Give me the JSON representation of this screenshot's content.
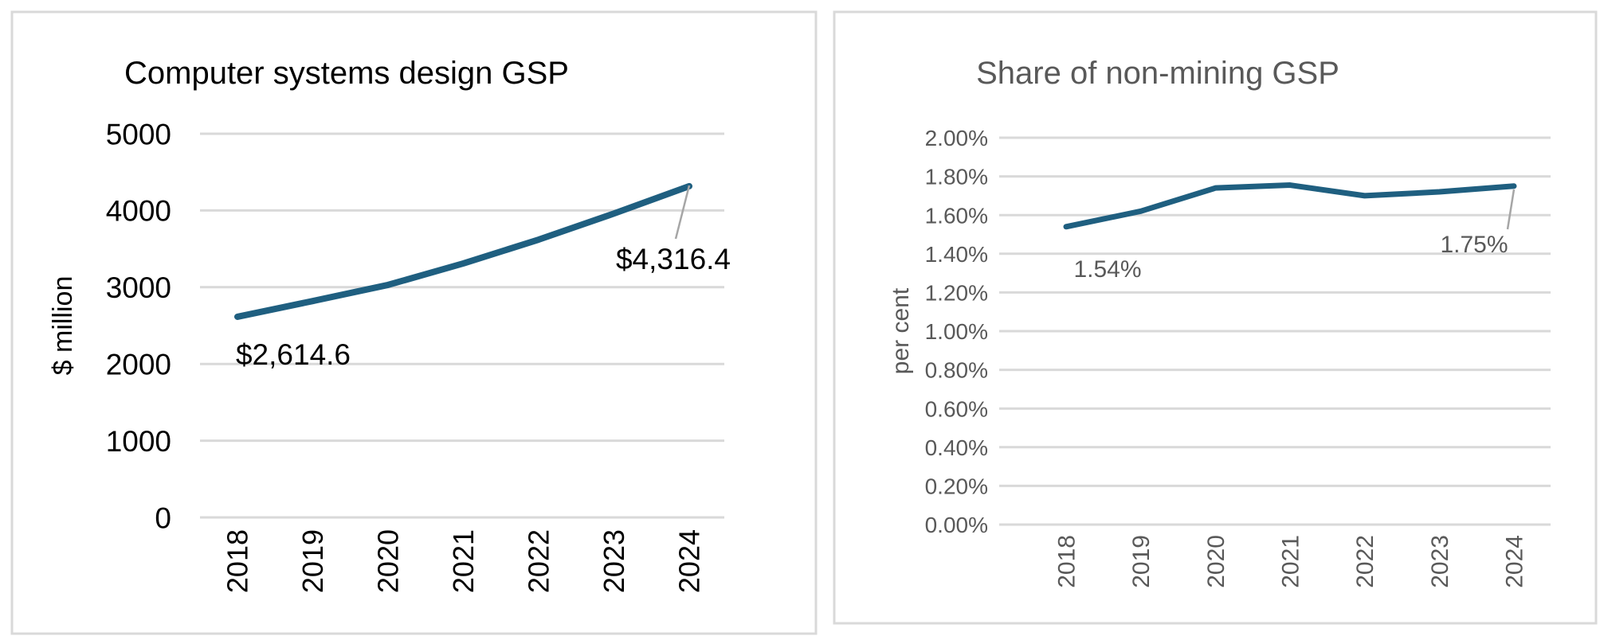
{
  "chart_data": [
    {
      "type": "line",
      "title": "Computer systems design GSP",
      "xlabel": "",
      "ylabel": "$ million",
      "categories": [
        "2018",
        "2019",
        "2020",
        "2021",
        "2022",
        "2023",
        "2024"
      ],
      "values": [
        2614.6,
        2820,
        3030,
        3310,
        3620,
        3960,
        4316.4
      ],
      "ylim": [
        0,
        5000
      ],
      "yticks": [
        "0",
        "1000",
        "2000",
        "3000",
        "4000",
        "5000"
      ],
      "ytick_values": [
        0,
        1000,
        2000,
        3000,
        4000,
        5000
      ],
      "data_labels": [
        {
          "index": 0,
          "text": "$2,614.6"
        },
        {
          "index": 6,
          "text": "$4,316.4"
        }
      ],
      "grid": true,
      "line_color": "#1F5F80",
      "text_color": "#000000"
    },
    {
      "type": "line",
      "title": "Share of non-mining GSP",
      "xlabel": "",
      "ylabel": "per cent",
      "categories": [
        "2018",
        "2019",
        "2020",
        "2021",
        "2022",
        "2023",
        "2024"
      ],
      "values": [
        1.54,
        1.62,
        1.74,
        1.755,
        1.7,
        1.72,
        1.75
      ],
      "ylim": [
        0,
        2.0
      ],
      "yticks": [
        "0.00%",
        "0.20%",
        "0.40%",
        "0.60%",
        "0.80%",
        "1.00%",
        "1.20%",
        "1.40%",
        "1.60%",
        "1.80%",
        "2.00%"
      ],
      "ytick_values": [
        0,
        0.2,
        0.4,
        0.6,
        0.8,
        1.0,
        1.2,
        1.4,
        1.6,
        1.8,
        2.0
      ],
      "data_labels": [
        {
          "index": 0,
          "text": "1.54%"
        },
        {
          "index": 6,
          "text": "1.75%"
        }
      ],
      "grid": true,
      "line_color": "#1F5F80",
      "text_color": "#595959"
    }
  ]
}
